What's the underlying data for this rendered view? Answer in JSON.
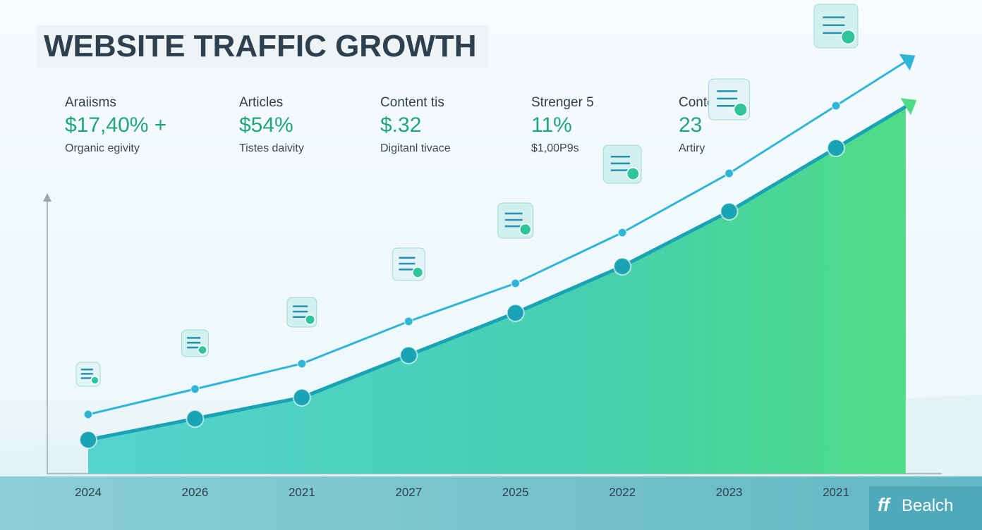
{
  "chart_data": {
    "type": "line",
    "title": "WEBSITE TRAFFIC GROWTH",
    "categories": [
      "2024",
      "2026",
      "2021",
      "2027",
      "2025",
      "2022",
      "2023",
      "2021"
    ],
    "series": [
      {
        "color": "#1aa3b5",
        "area": true,
        "values": [
          8,
          13,
          18,
          28,
          38,
          49,
          62,
          77
        ]
      },
      {
        "color": "#2fb6d6",
        "area": false,
        "values": [
          14,
          20,
          26,
          36,
          45,
          57,
          71,
          87
        ]
      }
    ],
    "ylim": [
      0,
      100
    ]
  },
  "stats": [
    {
      "label": "Araiisms",
      "value": "$17,40% +",
      "caption": "Organic egivity"
    },
    {
      "label": "Articles",
      "value": "$54%",
      "caption": "Tistes daivity"
    },
    {
      "label": "Content tis",
      "value": "$.32",
      "caption": "Digitanl tivace"
    },
    {
      "label": "Strenger 5",
      "value": "11%",
      "caption": "$1,00P9s"
    },
    {
      "label": "Content",
      "value": "23",
      "caption": "Artiry"
    }
  ],
  "brand": "Bealch"
}
